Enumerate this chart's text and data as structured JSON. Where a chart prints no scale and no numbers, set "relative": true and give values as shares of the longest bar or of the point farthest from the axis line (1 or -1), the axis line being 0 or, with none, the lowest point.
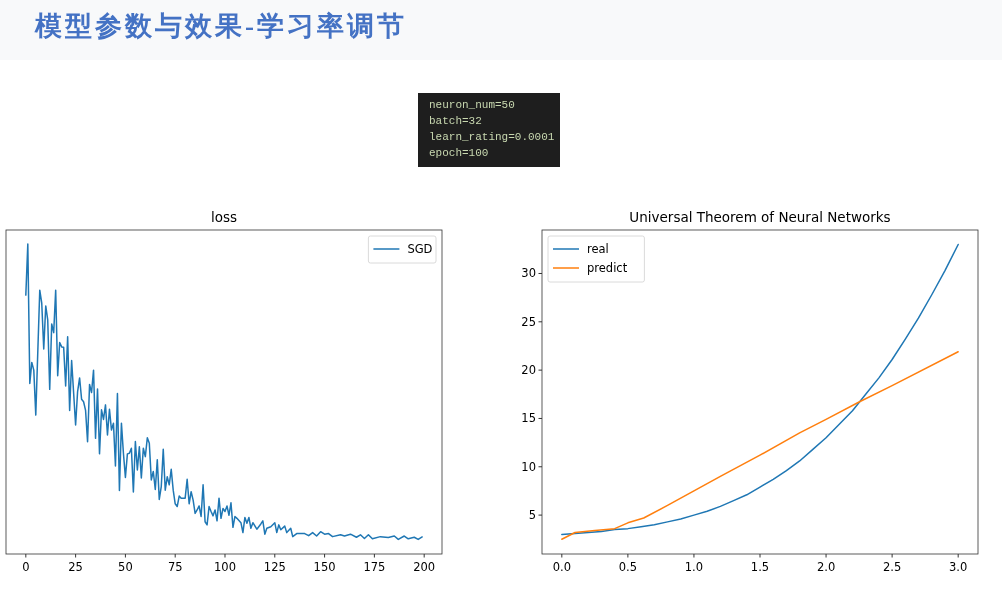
{
  "chart_data": [
    {
      "type": "other",
      "title": "模型参数与效果-学习率调节",
      "annotations": [
        "neuron_num=50",
        "batch=32",
        "learn_rating=0.0001",
        "epoch=100"
      ]
    },
    {
      "type": "line",
      "title": "loss",
      "relative": true,
      "tick_labels": "x",
      "legend": "top right",
      "xlim": [
        -9.95,
        208.95
      ],
      "xticks": [
        0,
        25,
        50,
        75,
        100,
        125,
        150,
        175,
        200
      ],
      "series": [
        {
          "name": "SGD",
          "color": "#1f77b4",
          "x": [
            0,
            1,
            2,
            3,
            4,
            5,
            7,
            8,
            9,
            10,
            11,
            12,
            13,
            14,
            15,
            16,
            17,
            18,
            19,
            20,
            21,
            22,
            23,
            25,
            26,
            27,
            28,
            29,
            30,
            31,
            32,
            33,
            34,
            35,
            36,
            37,
            38,
            39,
            40,
            41,
            42,
            43,
            44,
            45,
            46,
            47,
            48,
            49,
            50,
            51,
            52,
            53,
            54,
            55,
            56,
            57,
            58,
            59,
            60,
            61,
            62,
            63,
            64,
            65,
            66,
            67,
            68,
            69,
            70,
            71,
            72,
            73,
            74,
            75,
            76,
            77,
            78,
            80,
            81,
            82,
            83,
            84,
            85,
            86,
            87,
            88,
            89,
            90,
            91,
            92,
            93,
            94,
            95,
            96,
            97,
            98,
            99,
            100,
            101,
            102,
            103,
            104,
            105,
            106,
            108,
            109,
            110,
            111,
            112,
            113,
            114,
            116,
            118,
            119,
            120,
            121,
            123,
            125,
            126,
            127,
            128,
            130,
            131,
            133,
            134,
            136,
            140,
            142,
            144,
            146,
            148,
            150,
            152,
            154,
            158,
            160,
            163,
            166,
            168,
            170,
            172,
            174,
            178,
            182,
            185,
            187,
            190,
            192,
            195,
            197,
            199
          ],
          "values": [
            0.835,
            1.0,
            0.55,
            0.618,
            0.593,
            0.448,
            0.851,
            0.809,
            0.661,
            0.8,
            0.755,
            0.531,
            0.742,
            0.714,
            0.851,
            0.575,
            0.682,
            0.668,
            0.667,
            0.542,
            0.701,
            0.463,
            0.624,
            0.416,
            0.524,
            0.568,
            0.499,
            0.491,
            0.463,
            0.362,
            0.547,
            0.521,
            0.593,
            0.373,
            0.532,
            0.323,
            0.465,
            0.434,
            0.481,
            0.384,
            0.467,
            0.4,
            0.422,
            0.284,
            0.518,
            0.205,
            0.422,
            0.325,
            0.247,
            0.323,
            0.325,
            0.341,
            0.2,
            0.363,
            0.271,
            0.346,
            0.245,
            0.341,
            0.314,
            0.375,
            0.357,
            0.239,
            0.266,
            0.208,
            0.304,
            0.176,
            0.217,
            0.338,
            0.206,
            0.249,
            0.223,
            0.273,
            0.206,
            0.162,
            0.153,
            0.187,
            0.18,
            0.18,
            0.241,
            0.162,
            0.201,
            0.174,
            0.131,
            0.142,
            0.155,
            0.121,
            0.223,
            0.104,
            0.094,
            0.153,
            0.137,
            0.123,
            0.142,
            0.107,
            0.18,
            0.115,
            0.147,
            0.137,
            0.155,
            0.125,
            0.165,
            0.086,
            0.121,
            0.115,
            0.101,
            0.069,
            0.118,
            0.099,
            0.118,
            0.083,
            0.101,
            0.08,
            0.097,
            0.107,
            0.064,
            0.083,
            0.088,
            0.101,
            0.069,
            0.094,
            0.078,
            0.09,
            0.069,
            0.083,
            0.056,
            0.066,
            0.066,
            0.059,
            0.069,
            0.058,
            0.072,
            0.064,
            0.066,
            0.056,
            0.062,
            0.058,
            0.064,
            0.054,
            0.062,
            0.05,
            0.062,
            0.049,
            0.056,
            0.053,
            0.058,
            0.047,
            0.058,
            0.049,
            0.054,
            0.047,
            0.055
          ]
        }
      ]
    },
    {
      "type": "line",
      "title": "Universal Theorem of Neural Networks",
      "legend": "top left",
      "xlim": [
        -0.15,
        3.15
      ],
      "ylim": [
        0.975,
        34.5
      ],
      "xticks": [
        {
          "value": 0,
          "label": "0.0"
        },
        {
          "value": 0.5,
          "label": "0.5"
        },
        {
          "value": 1,
          "label": "1.0"
        },
        {
          "value": 1.5,
          "label": "1.5"
        },
        {
          "value": 2,
          "label": "2.0"
        },
        {
          "value": 2.5,
          "label": "2.5"
        },
        {
          "value": 3,
          "label": "3.0"
        }
      ],
      "yticks": [
        5,
        10,
        15,
        20,
        25,
        30
      ],
      "series": [
        {
          "name": "real",
          "color": "#1f77b4",
          "x": [
            0,
            0.1,
            0.2,
            0.3,
            0.4,
            0.5,
            0.6,
            0.7,
            0.8,
            0.9,
            1.0,
            1.1,
            1.2,
            1.3,
            1.4,
            1.5,
            1.6,
            1.7,
            1.8,
            1.9,
            2.0,
            2.1,
            2.2,
            2.3,
            2.4,
            2.5,
            2.6,
            2.7,
            2.8,
            2.9,
            3.0
          ],
          "values": [
            3.0,
            3.1,
            3.2,
            3.3,
            3.5,
            3.6,
            3.8,
            4.0,
            4.3,
            4.6,
            5.0,
            5.4,
            5.9,
            6.5,
            7.1,
            7.9,
            8.7,
            9.6,
            10.6,
            11.8,
            13.0,
            14.4,
            15.8,
            17.5,
            19.2,
            21.1,
            23.2,
            25.4,
            27.8,
            30.3,
            33.0
          ]
        },
        {
          "name": "predict",
          "color": "#ff7f0e",
          "x": [
            0,
            0.1,
            0.25,
            0.4,
            0.5,
            0.62,
            0.8,
            1.0,
            1.2,
            1.5,
            1.8,
            2.0,
            2.25,
            2.5,
            3.0
          ],
          "values": [
            2.5,
            3.2,
            3.4,
            3.6,
            4.2,
            4.7,
            6.0,
            7.5,
            9.0,
            11.2,
            13.5,
            14.9,
            16.7,
            18.4,
            21.9
          ]
        }
      ]
    }
  ]
}
